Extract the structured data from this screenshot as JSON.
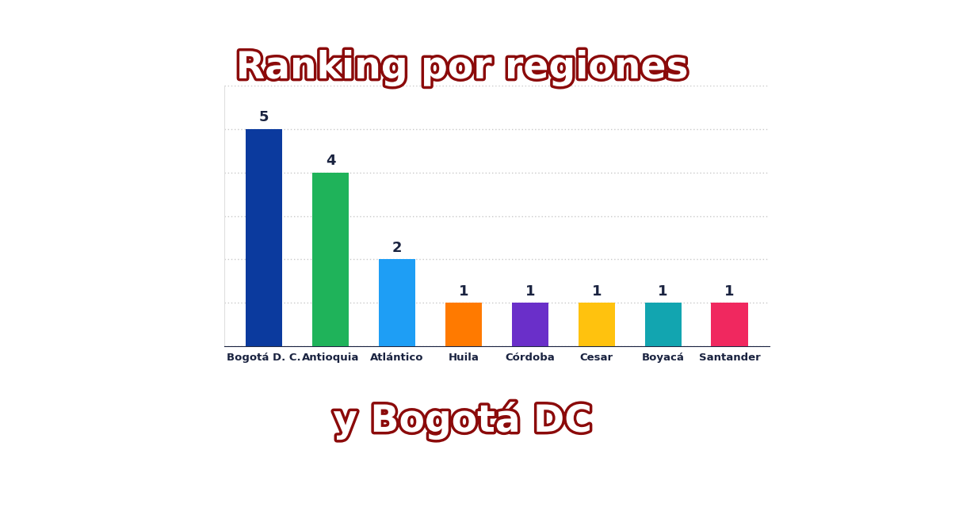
{
  "chart_data": {
    "type": "bar",
    "title": "Ranking por regiones",
    "subtitle": "y Bogotá DC",
    "categories": [
      "Bogotá D. C.",
      "Antioquia",
      "Atlántico",
      "Huila",
      "Córdoba",
      "Cesar",
      "Boyacá",
      "Santander"
    ],
    "values": [
      5,
      4,
      2,
      1,
      1,
      1,
      1,
      1
    ],
    "colors": [
      "#0b3a9e",
      "#1fb35a",
      "#1e9ef5",
      "#ff7a00",
      "#6a2fc9",
      "#ffc20e",
      "#12a5b0",
      "#f0285f"
    ],
    "ylim": [
      0,
      6
    ],
    "yticks": [
      0,
      1,
      2,
      3,
      4,
      5,
      6
    ],
    "grid": true,
    "data_labels": true,
    "tick_labels": "x"
  }
}
